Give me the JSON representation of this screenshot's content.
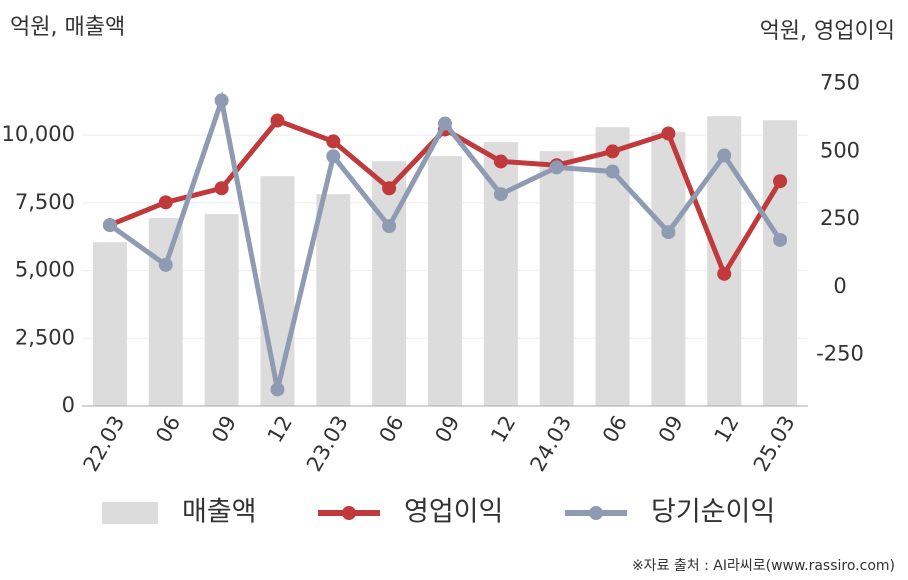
{
  "chart_data": {
    "type": "bar-line",
    "y_axis_label": "억원, 매출액",
    "y2_axis_label": "억원, 영업이익",
    "source": "※자료 출처 : AI라씨로(www.rassiro.com)",
    "categories": [
      "22.03",
      "06",
      "09",
      "12",
      "23.03",
      "06",
      "09",
      "12",
      "24.03",
      "06",
      "09",
      "12",
      "25.03"
    ],
    "series": [
      {
        "name": "매출액",
        "type": "bar",
        "color": "#dcdcdc",
        "values": [
          6050,
          6940,
          7085,
          8487,
          7823,
          9040,
          9225,
          9742,
          9410,
          10295,
          10111,
          10701,
          10554
        ]
      },
      {
        "name": "영업이익",
        "type": "line",
        "axis": "y2",
        "color": "#c0393b",
        "values": [
          228,
          312,
          364,
          614,
          537,
          364,
          581,
          463,
          449,
          500,
          566,
          48,
          390
        ]
      },
      {
        "name": "당기순이익",
        "type": "line",
        "axis": "y2",
        "color": "#8f9bb3",
        "values": [
          228,
          81,
          688,
          -379,
          482,
          224,
          603,
          342,
          441,
          426,
          202,
          485,
          173
        ]
      }
    ],
    "ylim": [
      0,
      12000
    ],
    "yticks": [
      0,
      {
        "value": 2500,
        "label": "2,500"
      },
      {
        "value": 5000,
        "label": "5,000"
      },
      {
        "value": 7500,
        "label": "7,500"
      },
      {
        "value": 10000,
        "label": "10,000"
      }
    ],
    "y2lim": [
      -440,
      760
    ],
    "y2ticks": [
      -250,
      0,
      250,
      500,
      750
    ],
    "grid": true,
    "legend": "bottom"
  }
}
